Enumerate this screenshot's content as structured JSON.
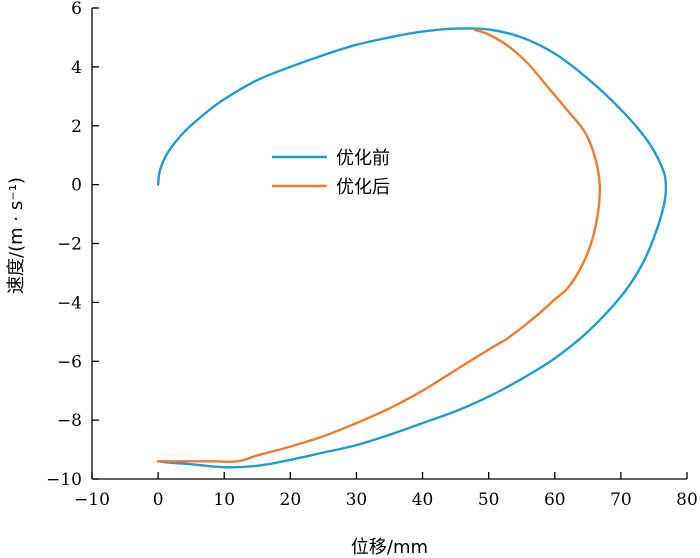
{
  "chart_data": {
    "type": "line",
    "xlabel": "位移/mm",
    "ylabel": "速度/(m · s⁻¹)",
    "xlim": [
      -10,
      80
    ],
    "ylim": [
      -10,
      6
    ],
    "xticks": [
      -10,
      0,
      10,
      20,
      30,
      40,
      50,
      60,
      70,
      80
    ],
    "yticks": [
      -10,
      -8,
      -6,
      -4,
      -2,
      0,
      2,
      4,
      6
    ],
    "xtick_labels": [
      "−10",
      "0",
      "10",
      "20",
      "30",
      "40",
      "50",
      "60",
      "70",
      "80"
    ],
    "ytick_labels": [
      "−10",
      "−8",
      "−6",
      "−4",
      "−2",
      "0",
      "2",
      "4",
      "6"
    ],
    "grid": false,
    "legend_position": "center",
    "series": [
      {
        "name": "优化前",
        "color": "#1f9bd1",
        "points": [
          [
            0,
            0
          ],
          [
            0.3,
            0.5
          ],
          [
            1.5,
            1.1
          ],
          [
            4,
            1.8
          ],
          [
            7,
            2.4
          ],
          [
            10,
            2.9
          ],
          [
            15,
            3.55
          ],
          [
            20,
            4.0
          ],
          [
            25,
            4.4
          ],
          [
            30,
            4.75
          ],
          [
            35,
            5.0
          ],
          [
            40,
            5.2
          ],
          [
            45,
            5.3
          ],
          [
            50,
            5.27
          ],
          [
            55,
            5.0
          ],
          [
            60,
            4.45
          ],
          [
            65,
            3.6
          ],
          [
            70,
            2.55
          ],
          [
            74,
            1.5
          ],
          [
            76.2,
            0.6
          ],
          [
            76.8,
            0
          ],
          [
            76.5,
            -0.7
          ],
          [
            75,
            -1.8
          ],
          [
            73,
            -2.8
          ],
          [
            70,
            -3.8
          ],
          [
            65,
            -5.0
          ],
          [
            60,
            -5.9
          ],
          [
            55,
            -6.6
          ],
          [
            50,
            -7.2
          ],
          [
            45,
            -7.7
          ],
          [
            40,
            -8.1
          ],
          [
            35,
            -8.5
          ],
          [
            30,
            -8.85
          ],
          [
            25,
            -9.1
          ],
          [
            20,
            -9.35
          ],
          [
            15,
            -9.55
          ],
          [
            10,
            -9.6
          ],
          [
            5,
            -9.5
          ],
          [
            2,
            -9.45
          ],
          [
            0,
            -9.4
          ]
        ]
      },
      {
        "name": "优化后",
        "color": "#ee7b30",
        "points": [
          [
            48,
            5.25
          ],
          [
            50,
            5.1
          ],
          [
            53,
            4.7
          ],
          [
            56,
            4.1
          ],
          [
            59,
            3.3
          ],
          [
            62,
            2.5
          ],
          [
            64.5,
            1.8
          ],
          [
            66,
            1.0
          ],
          [
            66.8,
            0
          ],
          [
            66.5,
            -1.0
          ],
          [
            65.5,
            -2.0
          ],
          [
            64,
            -2.8
          ],
          [
            62,
            -3.5
          ],
          [
            60,
            -3.9
          ],
          [
            57,
            -4.5
          ],
          [
            53,
            -5.2
          ],
          [
            50,
            -5.6
          ],
          [
            45,
            -6.3
          ],
          [
            40,
            -7.0
          ],
          [
            35,
            -7.6
          ],
          [
            30,
            -8.1
          ],
          [
            25,
            -8.55
          ],
          [
            20,
            -8.9
          ],
          [
            15,
            -9.2
          ],
          [
            12,
            -9.4
          ],
          [
            8,
            -9.4
          ],
          [
            4,
            -9.4
          ],
          [
            0,
            -9.4
          ]
        ]
      }
    ]
  }
}
